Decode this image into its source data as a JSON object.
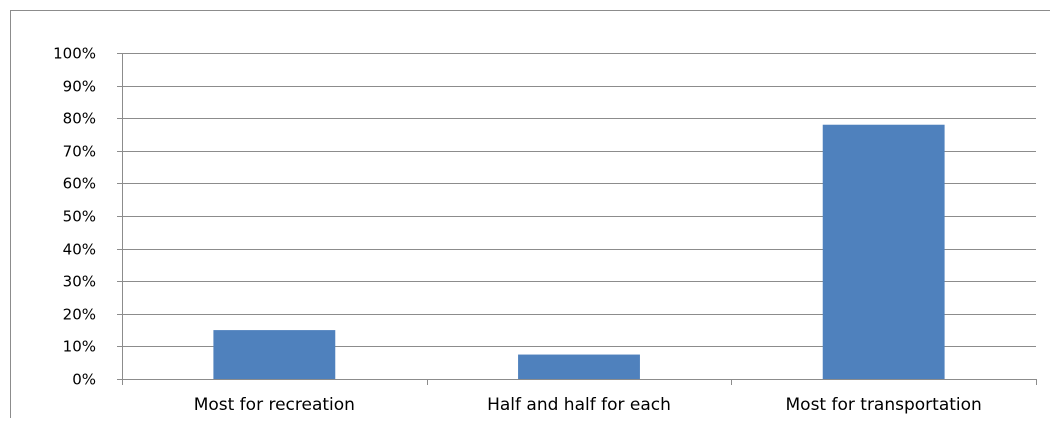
{
  "chart_data": {
    "type": "bar",
    "title": "",
    "xlabel": "",
    "ylabel": "",
    "categories": [
      "Most for recreation",
      "Half and half for each",
      "Most for transportation"
    ],
    "values": [
      15,
      7.5,
      78
    ],
    "ylim": [
      0,
      100
    ],
    "yticks": [
      "0%",
      "10%",
      "20%",
      "30%",
      "40%",
      "50%",
      "60%",
      "70%",
      "80%",
      "90%",
      "100%"
    ],
    "grid": true,
    "legend": "none",
    "bar_color": "#4f81bd",
    "grid_color": "#8c8c8c"
  }
}
